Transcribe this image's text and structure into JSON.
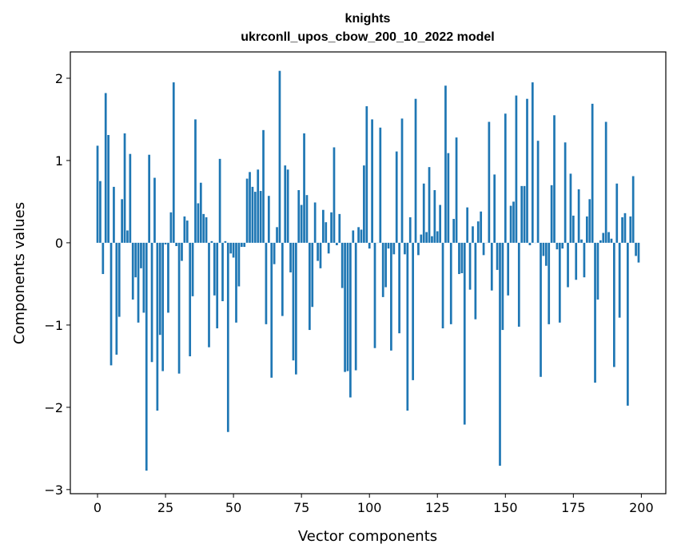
{
  "chart_data": {
    "type": "bar",
    "title": "knights",
    "subtitle": "ukrconll_upos_cbow_200_10_2022 model",
    "xlabel": "Vector components",
    "ylabel": "Components values",
    "xlim": [
      -10,
      209
    ],
    "ylim": [
      -3.05,
      2.32
    ],
    "xticks": [
      0,
      25,
      50,
      75,
      100,
      125,
      150,
      175,
      200
    ],
    "yticks": [
      -3,
      -2,
      -1,
      0,
      1,
      2
    ],
    "ytick_labels": [
      "−3",
      "−2",
      "−1",
      "0",
      "1",
      "2"
    ],
    "bar_color": "#1f77b4",
    "grid": false,
    "values": [
      1.18,
      0.75,
      -0.38,
      1.82,
      1.31,
      -1.49,
      0.68,
      -1.36,
      -0.9,
      0.53,
      1.33,
      0.15,
      1.08,
      -0.69,
      -0.42,
      -0.97,
      -0.31,
      -0.85,
      -2.77,
      1.07,
      -1.45,
      0.79,
      -2.04,
      -1.12,
      -1.56,
      -0.02,
      -0.85,
      0.37,
      1.95,
      -0.04,
      -1.59,
      -0.22,
      0.32,
      0.27,
      -1.38,
      -0.65,
      1.5,
      0.48,
      0.73,
      0.35,
      0.31,
      -1.27,
      0.02,
      -0.64,
      -1.04,
      1.02,
      -0.71,
      0.02,
      -2.3,
      -0.13,
      -0.18,
      -0.97,
      -0.53,
      -0.05,
      -0.05,
      0.78,
      0.86,
      0.68,
      0.62,
      0.89,
      0.63,
      1.37,
      -0.99,
      0.57,
      -1.64,
      -0.26,
      0.19,
      2.09,
      -0.89,
      0.94,
      0.89,
      -0.36,
      -1.43,
      -1.6,
      0.64,
      0.46,
      1.33,
      0.58,
      -1.06,
      -0.78,
      0.49,
      -0.22,
      -0.31,
      0.4,
      0.25,
      -0.13,
      0.37,
      1.16,
      -0.03,
      0.35,
      -0.55,
      -1.57,
      -1.56,
      -1.88,
      0.15,
      -1.55,
      0.19,
      0.16,
      0.94,
      1.66,
      -0.07,
      1.5,
      -1.28,
      0.0,
      1.4,
      -0.66,
      -0.54,
      -0.07,
      -1.31,
      -0.14,
      1.11,
      -1.1,
      1.51,
      -0.14,
      -2.04,
      0.31,
      -1.67,
      1.75,
      -0.15,
      0.1,
      0.72,
      0.13,
      0.92,
      0.08,
      0.64,
      0.14,
      0.46,
      -1.04,
      1.91,
      1.09,
      -0.99,
      0.29,
      1.28,
      -0.38,
      -0.37,
      -2.21,
      0.43,
      -0.57,
      0.2,
      -0.93,
      0.26,
      0.38,
      -0.15,
      0.0,
      1.47,
      -0.58,
      0.83,
      -0.33,
      -2.71,
      -1.06,
      1.57,
      -0.64,
      0.45,
      0.5,
      1.79,
      -1.02,
      0.69,
      0.69,
      1.75,
      -0.03,
      1.95,
      0.0,
      1.24,
      -1.63,
      -0.16,
      -0.28,
      -0.99,
      0.7,
      1.55,
      -0.08,
      -0.97,
      -0.07,
      1.22,
      -0.54,
      0.84,
      0.33,
      -0.45,
      0.65,
      0.04,
      -0.42,
      0.32,
      0.53,
      1.69,
      -1.7,
      -0.69,
      0.03,
      0.12,
      1.47,
      0.13,
      0.05,
      -1.51,
      0.72,
      -0.91,
      0.31,
      0.36,
      -1.98,
      0.32,
      0.81,
      -0.16,
      -0.24
    ]
  }
}
